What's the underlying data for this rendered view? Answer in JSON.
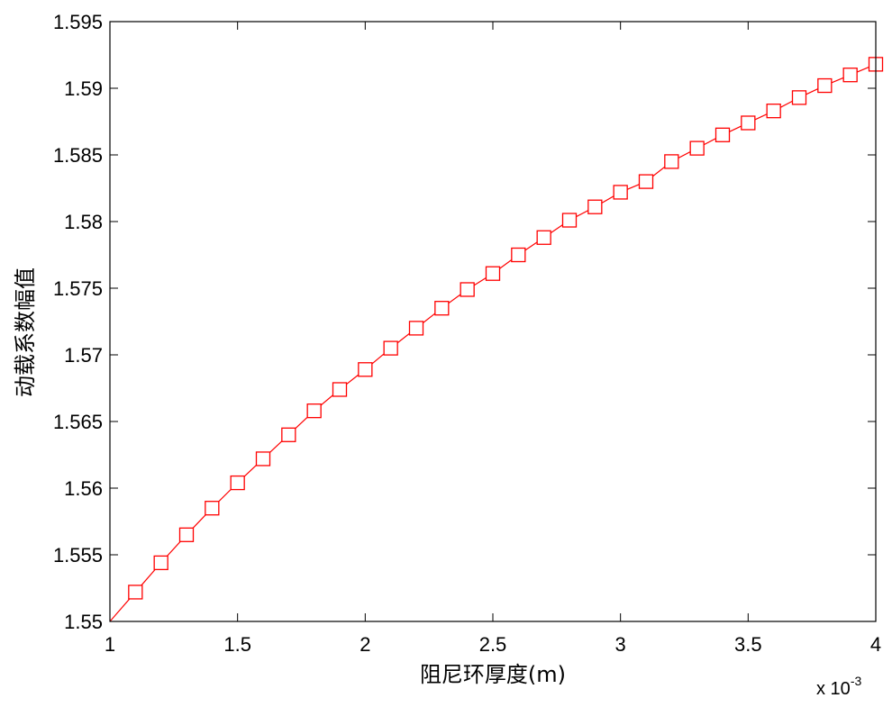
{
  "chart_data": {
    "type": "line",
    "title": "",
    "xlabel": "阻尼环厚度(m)",
    "ylabel": "动载系数幅值",
    "x_multiplier": {
      "prefix": "x 10",
      "exponent": "-3"
    },
    "xlim": [
      1,
      4
    ],
    "ylim": [
      1.55,
      1.595
    ],
    "xticks": [
      1,
      1.5,
      2,
      2.5,
      3,
      3.5,
      4
    ],
    "xtick_labels": [
      "1",
      "1.5",
      "2",
      "2.5",
      "3",
      "3.5",
      "4"
    ],
    "yticks": [
      1.55,
      1.555,
      1.56,
      1.565,
      1.57,
      1.575,
      1.58,
      1.585,
      1.59,
      1.595
    ],
    "ytick_labels": [
      "1.55",
      "1.555",
      "1.56",
      "1.565",
      "1.57",
      "1.575",
      "1.58",
      "1.585",
      "1.59",
      "1.595"
    ],
    "grid": false,
    "color": "#ff0000",
    "marker": "square",
    "series": [
      {
        "x": [
          1.1,
          1.2,
          1.3,
          1.4,
          1.5,
          1.6,
          1.7,
          1.8,
          1.9,
          2.0,
          2.1,
          2.2,
          2.3,
          2.4,
          2.5,
          2.6,
          2.7,
          2.8,
          2.9,
          3.0,
          3.1,
          3.2,
          3.3,
          3.4,
          3.5,
          3.6,
          3.7,
          3.8,
          3.9,
          4.0
        ],
        "y": [
          1.5522,
          1.5544,
          1.5565,
          1.5585,
          1.5604,
          1.5622,
          1.564,
          1.5658,
          1.5674,
          1.5689,
          1.5705,
          1.572,
          1.5735,
          1.5749,
          1.5761,
          1.5775,
          1.5788,
          1.5801,
          1.5811,
          1.5822,
          1.583,
          1.5845,
          1.5855,
          1.5865,
          1.5874,
          1.5883,
          1.5893,
          1.5902,
          1.591,
          1.5918
        ]
      }
    ]
  }
}
